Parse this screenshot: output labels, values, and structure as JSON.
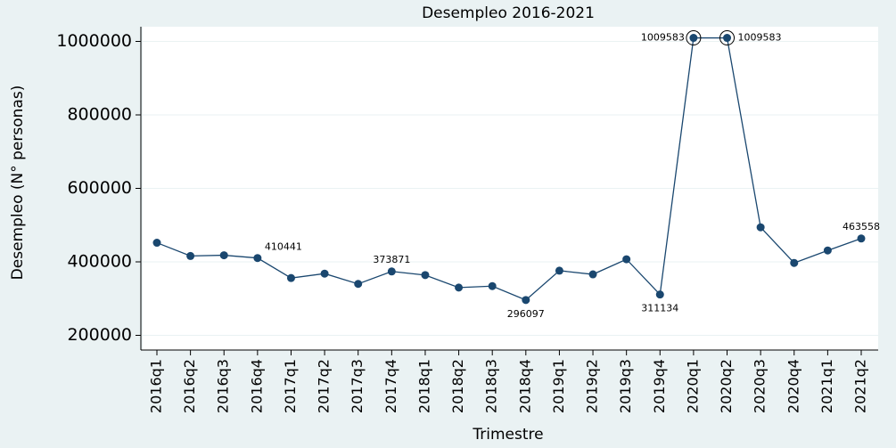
{
  "chart_data": {
    "type": "line",
    "title": "Desempleo 2016-2021",
    "x_label": "Trimestre",
    "y_label": "Desempleo (N° personas)",
    "categories": [
      "2016q1",
      "2016q2",
      "2016q3",
      "2016q4",
      "2017q1",
      "2017q2",
      "2017q3",
      "2017q4",
      "2018q1",
      "2018q2",
      "2018q3",
      "2018q4",
      "2019q1",
      "2019q2",
      "2019q3",
      "2019q4",
      "2020q1",
      "2020q2",
      "2020q3",
      "2020q4",
      "2021q1",
      "2021q2"
    ],
    "series": [
      {
        "name": "Desempleo",
        "color": "#1a476f",
        "values": [
          452000,
          416000,
          418000,
          410441,
          356000,
          368000,
          340000,
          373871,
          364000,
          330000,
          334000,
          296097,
          376000,
          366000,
          407000,
          311134,
          1009583,
          1009583,
          494000,
          397000,
          431000,
          463558
        ],
        "value_labels": [
          null,
          null,
          null,
          "410441",
          null,
          null,
          null,
          "373871",
          null,
          null,
          null,
          "296097",
          null,
          null,
          null,
          "311134",
          "1009583",
          "1009583",
          null,
          null,
          null,
          "463558"
        ]
      }
    ],
    "ylim": [
      160000,
      1040000
    ],
    "yticks": [
      200000,
      400000,
      600000,
      800000,
      1000000
    ],
    "grid": true
  }
}
